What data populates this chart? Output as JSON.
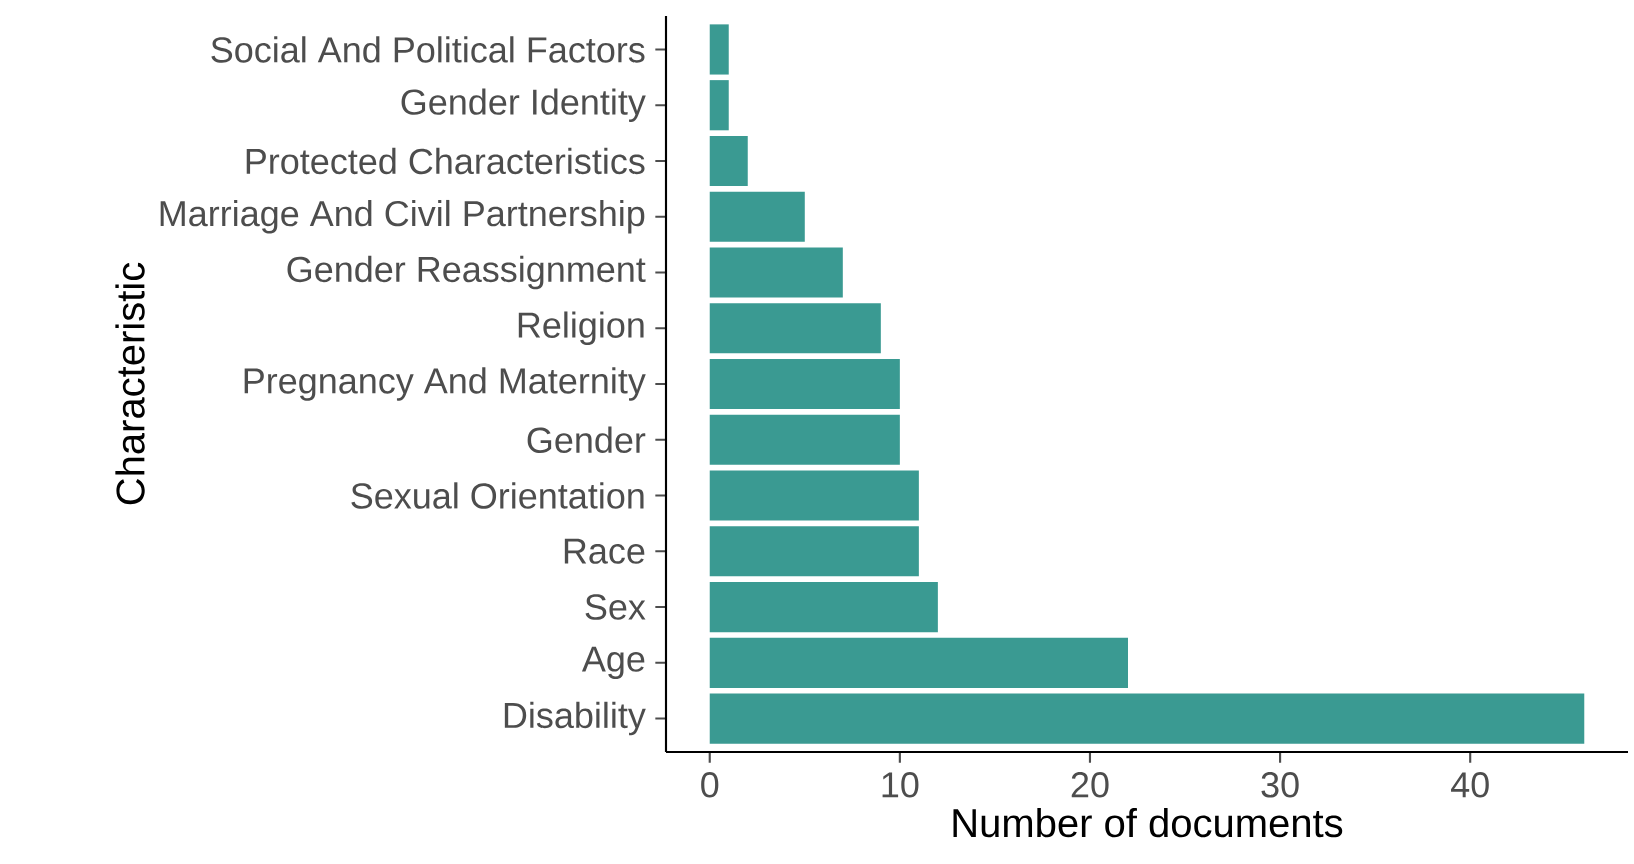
{
  "chart_data": {
    "type": "bar",
    "orientation": "horizontal",
    "xlabel": "Number of documents",
    "ylabel": "Characteristic",
    "categories": [
      "Social And Political Factors",
      "Gender Identity",
      "Protected Characteristics",
      "Marriage And Civil Partnership",
      "Gender Reassignment",
      "Religion",
      "Pregnancy And Maternity",
      "Gender",
      "Sexual Orientation",
      "Race",
      "Sex",
      "Age",
      "Disability"
    ],
    "values": [
      1,
      1,
      2,
      5,
      7,
      9,
      10,
      10,
      11,
      11,
      12,
      22,
      46
    ],
    "color": "#3a9a92",
    "xlim": [
      -2.3,
      48.3
    ],
    "xticks": [
      0,
      10,
      20,
      30,
      40
    ]
  }
}
